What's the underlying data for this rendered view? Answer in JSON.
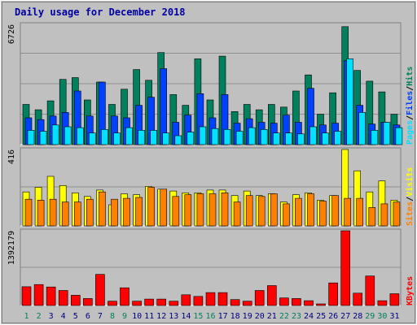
{
  "colors": {
    "background": "#c0c0c0",
    "plot_bg": "#c0c0c0",
    "title": "#0000a0",
    "hits": "#00805c",
    "files": "#0040ff",
    "pages": "#00e0ff",
    "visits": "#ffff00",
    "sites": "#ff8000",
    "kbytes": "#ff0000",
    "weekend_label": "#00805c",
    "weekday_label": "#000080"
  },
  "chart_data": {
    "title": "Daily usage for December 2018",
    "days": [
      "1",
      "2",
      "3",
      "4",
      "5",
      "6",
      "7",
      "8",
      "9",
      "10",
      "11",
      "12",
      "13",
      "14",
      "15",
      "16",
      "17",
      "18",
      "19",
      "20",
      "21",
      "22",
      "23",
      "24",
      "25",
      "26",
      "27",
      "28",
      "29",
      "30",
      "31"
    ],
    "weekend_days": [
      "1",
      "2",
      "8",
      "9",
      "15",
      "16",
      "22",
      "23",
      "29",
      "30"
    ],
    "panels": [
      {
        "type": "bar",
        "max_label": "6726",
        "ylim": [
          0,
          6726
        ],
        "grid": true,
        "legend": [
          "Pages",
          "Files",
          "Hits"
        ],
        "series": [
          {
            "name": "Hits",
            "color_key": "hits",
            "values": [
              2250,
              1950,
              2450,
              3650,
              3750,
              2500,
              3500,
              2250,
              3100,
              4200,
              3600,
              5150,
              2800,
              2200,
              4800,
              2500,
              4950,
              1850,
              2250,
              1950,
              2250,
              2100,
              3000,
              3900,
              1700,
              2900,
              6600,
              4150,
              3550,
              2950,
              1700
            ]
          },
          {
            "name": "Files",
            "color_key": "files",
            "values": [
              1500,
              1400,
              1600,
              1800,
              3000,
              1600,
              3500,
              1600,
              1500,
              2200,
              2650,
              4250,
              1250,
              1650,
              2850,
              1500,
              2800,
              1200,
              1450,
              1250,
              1200,
              1650,
              1250,
              3150,
              1100,
              1200,
              4700,
              2200,
              1150,
              1250,
              1100
            ]
          },
          {
            "name": "Pages",
            "color_key": "pages",
            "values": [
              800,
              750,
              1100,
              1000,
              950,
              650,
              850,
              650,
              950,
              800,
              800,
              650,
              500,
              700,
              1000,
              900,
              850,
              750,
              950,
              850,
              650,
              650,
              600,
              1000,
              650,
              750,
              4800,
              1800,
              800,
              1250,
              950
            ]
          }
        ]
      },
      {
        "type": "bar",
        "max_label": "416",
        "ylim": [
          0,
          416
        ],
        "grid": true,
        "legend": [
          "Sites",
          "Visits"
        ],
        "series": [
          {
            "name": "Visits",
            "color_key": "visits",
            "values": [
              185,
              210,
              270,
              220,
              180,
              160,
              195,
              115,
              175,
              170,
              215,
              200,
              190,
              180,
              180,
              195,
              195,
              165,
              190,
              165,
              175,
              130,
              170,
              180,
              140,
              165,
              416,
              300,
              185,
              245,
              140
            ]
          },
          {
            "name": "Sites",
            "color_key": "sites",
            "values": [
              145,
              140,
              145,
              130,
              130,
              145,
              185,
              145,
              150,
              155,
              210,
              200,
              160,
              170,
              175,
              175,
              180,
              130,
              165,
              160,
              175,
              120,
              150,
              175,
              135,
              165,
              150,
              150,
              100,
              120,
              130
            ]
          }
        ]
      },
      {
        "type": "bar",
        "max_label": "1392179",
        "ylim": [
          0,
          1392179
        ],
        "grid": true,
        "legend": [
          "KBytes"
        ],
        "series": [
          {
            "name": "KBytes",
            "color_key": "kbytes",
            "values": [
              350000,
              390000,
              345000,
              280000,
              190000,
              130000,
              580000,
              80000,
              330000,
              80000,
              120000,
              120000,
              80000,
              200000,
              170000,
              240000,
              240000,
              110000,
              80000,
              280000,
              370000,
              140000,
              130000,
              90000,
              30000,
              420000,
              1392179,
              230000,
              550000,
              90000,
              220000
            ]
          }
        ]
      }
    ]
  }
}
